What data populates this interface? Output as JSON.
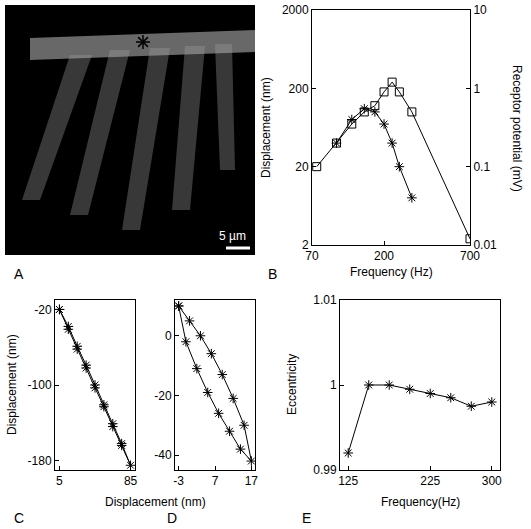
{
  "chart_data": [
    {
      "label": "A",
      "type": "image",
      "annotations": [
        "5 µm"
      ]
    },
    {
      "label": "B",
      "type": "line",
      "log": true,
      "xlabel": "Frequency (Hz)",
      "ylabel": "Displacement (nm)",
      "y2label": "Receptor potential (mV)",
      "xlim": [
        70,
        700
      ],
      "xticks": [
        70,
        200,
        700
      ],
      "ylim": [
        2,
        2000
      ],
      "yticks": [
        2,
        20,
        200,
        2000
      ],
      "y2lim": [
        0.01,
        10
      ],
      "y2ticks": [
        0.01,
        0.1,
        1,
        10
      ],
      "color": "black",
      "series": [
        {
          "x": [
            100,
            125,
            150,
            175,
            200,
            225,
            250,
            300
          ],
          "values": [
            40,
            80,
            110,
            100,
            70,
            40,
            20,
            8
          ],
          "marker": "asterisk"
        },
        {
          "x": [
            75,
            100,
            125,
            150,
            175,
            200,
            225,
            250,
            300,
            700
          ],
          "values": [
            0.1,
            0.2,
            0.35,
            0.5,
            0.6,
            0.9,
            1.2,
            0.9,
            0.5,
            0.012
          ],
          "marker": "square",
          "axis": "y2"
        }
      ]
    },
    {
      "label": "C",
      "type": "line",
      "xlabel": "Displacement (nm)",
      "ylabel": "Displacement (nm)",
      "xlim": [
        0,
        90
      ],
      "xticks": [
        5,
        85
      ],
      "ylim": [
        -190,
        -10
      ],
      "yticks": [
        -20,
        -100,
        -180
      ],
      "color": "black",
      "marker": "asterisk",
      "series": [
        {
          "x": [
            5,
            15,
            25,
            35,
            45,
            55,
            65,
            75,
            85,
            75,
            65,
            55,
            45,
            35,
            25,
            15,
            5
          ],
          "values": [
            -20,
            -41,
            -62,
            -82,
            -103,
            -123,
            -144,
            -164,
            -185,
            -162,
            -141,
            -121,
            -100,
            -79,
            -59,
            -38,
            -20
          ]
        }
      ]
    },
    {
      "label": "D",
      "type": "line",
      "xlim": [
        -4,
        18
      ],
      "xticks": [
        -3,
        7,
        17
      ],
      "ylim": [
        -45,
        12
      ],
      "yticks": [
        0,
        -20,
        -40
      ],
      "color": "black",
      "marker": "asterisk",
      "series": [
        {
          "x": [
            -3,
            0,
            3,
            6,
            9,
            12,
            15,
            17,
            14,
            11,
            8,
            5,
            2,
            -1,
            -3
          ],
          "values": [
            10,
            5,
            0,
            -6,
            -13,
            -21,
            -30,
            -42,
            -38,
            -32,
            -26,
            -19,
            -11,
            -2,
            10
          ]
        }
      ]
    },
    {
      "label": "E",
      "type": "line",
      "xlabel": "Frequency(Hz)",
      "ylabel": "Eccentricity",
      "xlim": [
        115,
        310
      ],
      "xticks": [
        125,
        225,
        300
      ],
      "ylim": [
        0.99,
        1.01
      ],
      "yticks": [
        0.99,
        1,
        1.01
      ],
      "color": "black",
      "marker": "asterisk",
      "series": [
        {
          "x": [
            125,
            150,
            175,
            200,
            225,
            250,
            275,
            300
          ],
          "values": [
            0.992,
            1.0,
            1.0,
            0.9995,
            0.999,
            0.9985,
            0.9975,
            0.998
          ]
        }
      ]
    }
  ]
}
